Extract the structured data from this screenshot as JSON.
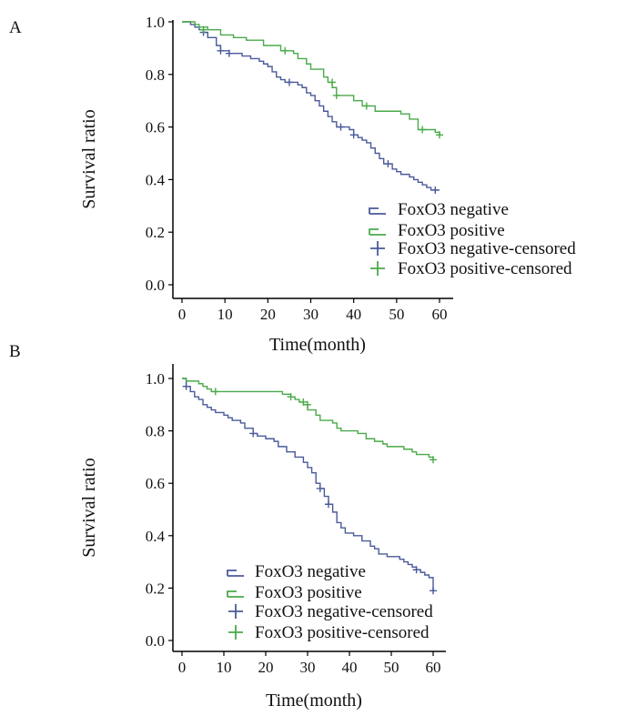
{
  "chart_data": [
    {
      "panel": "A",
      "type": "line",
      "subtype": "kaplan-meier",
      "xlabel": "Time(month)",
      "ylabel": "Survival ratio",
      "xlim": [
        0,
        60
      ],
      "ylim": [
        0,
        1
      ],
      "x_ticks": [
        "0",
        "10",
        "20",
        "30",
        "40",
        "50",
        "60"
      ],
      "y_ticks": [
        "0.0",
        "0.2",
        "0.4",
        "0.6",
        "0.8",
        "1.0"
      ],
      "legend_position": "bottom-right",
      "legend": [
        "FoxO3 negative",
        "FoxO3 positive",
        "FoxO3 negative-censored",
        "FoxO3 positive-censored"
      ],
      "series": [
        {
          "name": "FoxO3 negative",
          "color": "#4a5a9a",
          "steps": [
            [
              0,
              1.0
            ],
            [
              2,
              0.99
            ],
            [
              3,
              0.98
            ],
            [
              4,
              0.97
            ],
            [
              5,
              0.96
            ],
            [
              6,
              0.94
            ],
            [
              8,
              0.91
            ],
            [
              9,
              0.89
            ],
            [
              11,
              0.88
            ],
            [
              14,
              0.87
            ],
            [
              16,
              0.86
            ],
            [
              18,
              0.85
            ],
            [
              19,
              0.84
            ],
            [
              20,
              0.83
            ],
            [
              21,
              0.81
            ],
            [
              22,
              0.79
            ],
            [
              23,
              0.78
            ],
            [
              24,
              0.77
            ],
            [
              26,
              0.77
            ],
            [
              27,
              0.76
            ],
            [
              28,
              0.75
            ],
            [
              29,
              0.73
            ],
            [
              30,
              0.72
            ],
            [
              31,
              0.7
            ],
            [
              32,
              0.68
            ],
            [
              33,
              0.66
            ],
            [
              34,
              0.64
            ],
            [
              35,
              0.62
            ],
            [
              36,
              0.6
            ],
            [
              39,
              0.59
            ],
            [
              40,
              0.57
            ],
            [
              41,
              0.56
            ],
            [
              42,
              0.55
            ],
            [
              43,
              0.54
            ],
            [
              44,
              0.52
            ],
            [
              45,
              0.5
            ],
            [
              46,
              0.48
            ],
            [
              47,
              0.46
            ],
            [
              49,
              0.44
            ],
            [
              50,
              0.43
            ],
            [
              51,
              0.42
            ],
            [
              53,
              0.41
            ],
            [
              54,
              0.4
            ],
            [
              55,
              0.39
            ],
            [
              56,
              0.38
            ],
            [
              57,
              0.37
            ],
            [
              58,
              0.36
            ],
            [
              60,
              0.36
            ]
          ],
          "censored": [
            [
              5,
              0.96
            ],
            [
              9,
              0.89
            ],
            [
              11,
              0.88
            ],
            [
              25,
              0.77
            ],
            [
              37,
              0.6
            ],
            [
              40,
              0.57
            ],
            [
              48,
              0.46
            ],
            [
              59,
              0.36
            ]
          ]
        },
        {
          "name": "FoxO3 positive",
          "color": "#4aaa4a",
          "steps": [
            [
              0,
              1.0
            ],
            [
              3,
              0.99
            ],
            [
              4,
              0.98
            ],
            [
              6,
              0.97
            ],
            [
              9,
              0.95
            ],
            [
              12,
              0.94
            ],
            [
              15,
              0.93
            ],
            [
              19,
              0.91
            ],
            [
              23,
              0.89
            ],
            [
              26,
              0.88
            ],
            [
              27,
              0.86
            ],
            [
              29,
              0.84
            ],
            [
              30,
              0.82
            ],
            [
              33,
              0.79
            ],
            [
              34,
              0.77
            ],
            [
              35,
              0.75
            ],
            [
              36,
              0.72
            ],
            [
              40,
              0.7
            ],
            [
              42,
              0.68
            ],
            [
              45,
              0.66
            ],
            [
              51,
              0.65
            ],
            [
              53,
              0.63
            ],
            [
              55,
              0.59
            ],
            [
              56,
              0.59
            ],
            [
              59,
              0.58
            ],
            [
              60,
              0.57
            ]
          ],
          "censored": [
            [
              5,
              0.97
            ],
            [
              24,
              0.89
            ],
            [
              35,
              0.77
            ],
            [
              36,
              0.72
            ],
            [
              43,
              0.68
            ],
            [
              56,
              0.59
            ],
            [
              60,
              0.57
            ]
          ]
        }
      ]
    },
    {
      "panel": "B",
      "type": "line",
      "subtype": "kaplan-meier",
      "xlabel": "Time(month)",
      "ylabel": "Survival ratio",
      "xlim": [
        0,
        60
      ],
      "ylim": [
        0,
        1
      ],
      "x_ticks": [
        "0",
        "10",
        "20",
        "30",
        "40",
        "50",
        "60"
      ],
      "y_ticks": [
        "0.0",
        "0.2",
        "0.4",
        "0.6",
        "0.8",
        "1.0"
      ],
      "legend_position": "bottom-center",
      "legend": [
        "FoxO3 negative",
        "FoxO3 positive",
        "FoxO3 negative-censored",
        "FoxO3 positive-censored"
      ],
      "series": [
        {
          "name": "FoxO3 negative",
          "color": "#4a5a9a",
          "steps": [
            [
              0,
              1.0
            ],
            [
              1,
              0.97
            ],
            [
              2,
              0.95
            ],
            [
              3,
              0.93
            ],
            [
              4,
              0.92
            ],
            [
              5,
              0.9
            ],
            [
              6,
              0.89
            ],
            [
              7,
              0.88
            ],
            [
              8,
              0.87
            ],
            [
              10,
              0.86
            ],
            [
              11,
              0.85
            ],
            [
              12,
              0.84
            ],
            [
              14,
              0.83
            ],
            [
              15,
              0.81
            ],
            [
              17,
              0.79
            ],
            [
              18,
              0.78
            ],
            [
              20,
              0.77
            ],
            [
              22,
              0.76
            ],
            [
              23,
              0.74
            ],
            [
              25,
              0.72
            ],
            [
              27,
              0.7
            ],
            [
              29,
              0.68
            ],
            [
              30,
              0.66
            ],
            [
              31,
              0.64
            ],
            [
              32,
              0.6
            ],
            [
              33,
              0.58
            ],
            [
              34,
              0.55
            ],
            [
              35,
              0.52
            ],
            [
              36,
              0.49
            ],
            [
              37,
              0.45
            ],
            [
              38,
              0.43
            ],
            [
              39,
              0.41
            ],
            [
              41,
              0.4
            ],
            [
              43,
              0.38
            ],
            [
              45,
              0.36
            ],
            [
              46,
              0.35
            ],
            [
              47,
              0.33
            ],
            [
              49,
              0.32
            ],
            [
              52,
              0.31
            ],
            [
              53,
              0.3
            ],
            [
              54,
              0.29
            ],
            [
              55,
              0.28
            ],
            [
              56,
              0.27
            ],
            [
              57,
              0.26
            ],
            [
              58,
              0.25
            ],
            [
              59,
              0.24
            ],
            [
              60,
              0.19
            ]
          ],
          "censored": [
            [
              1,
              0.97
            ],
            [
              17,
              0.79
            ],
            [
              33,
              0.58
            ],
            [
              35,
              0.52
            ],
            [
              56,
              0.27
            ],
            [
              60,
              0.19
            ]
          ]
        },
        {
          "name": "FoxO3 positive",
          "color": "#4aaa4a",
          "steps": [
            [
              0,
              1.0
            ],
            [
              1,
              0.99
            ],
            [
              4,
              0.98
            ],
            [
              5,
              0.97
            ],
            [
              6,
              0.96
            ],
            [
              7,
              0.95
            ],
            [
              10,
              0.95
            ],
            [
              24,
              0.94
            ],
            [
              26,
              0.93
            ],
            [
              27,
              0.92
            ],
            [
              28,
              0.91
            ],
            [
              29,
              0.9
            ],
            [
              30,
              0.88
            ],
            [
              32,
              0.86
            ],
            [
              33,
              0.84
            ],
            [
              36,
              0.83
            ],
            [
              37,
              0.81
            ],
            [
              38,
              0.8
            ],
            [
              42,
              0.79
            ],
            [
              44,
              0.77
            ],
            [
              46,
              0.76
            ],
            [
              48,
              0.75
            ],
            [
              49,
              0.74
            ],
            [
              53,
              0.73
            ],
            [
              55,
              0.72
            ],
            [
              56,
              0.71
            ],
            [
              59,
              0.7
            ],
            [
              60,
              0.69
            ]
          ],
          "censored": [
            [
              8,
              0.95
            ],
            [
              26,
              0.93
            ],
            [
              29,
              0.91
            ],
            [
              30,
              0.9
            ],
            [
              60,
              0.69
            ]
          ]
        }
      ]
    }
  ]
}
